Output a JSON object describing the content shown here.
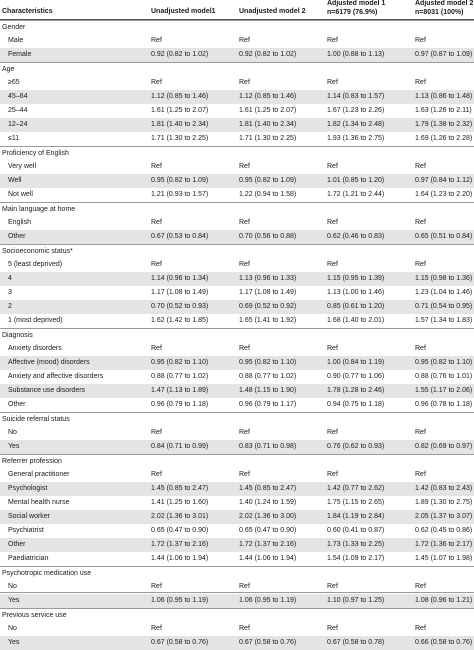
{
  "header": {
    "characteristics": "Characteristics",
    "m1": "Unadjusted model1",
    "m2": "Unadjusted model 2",
    "adj1_line1": "Adjusted model 1",
    "adj1_line2": "n=6179 (76.9%)",
    "adj2_line1": "Adjusted model 2",
    "adj2_line2": "n=8031 (100%)"
  },
  "sections": [
    {
      "title": "Gender",
      "rows": [
        {
          "label": "Male",
          "v": [
            "Ref",
            "Ref",
            "Ref",
            "Ref"
          ]
        },
        {
          "label": "Female",
          "v": [
            "0.92 (0.82 to 1.02)",
            "0.92 (0.82 to 1.02)",
            "1.00 (0.88 to 1.13)",
            "0.97 (0.87 to 1.09)"
          ]
        }
      ]
    },
    {
      "title": "Age",
      "rows": [
        {
          "label": "≥65",
          "v": [
            "Ref",
            "Ref",
            "Ref",
            "Ref"
          ]
        },
        {
          "label": "45–64",
          "v": [
            "1.12 (0.85 to 1.46)",
            "1.12 (0.85 to 1.46)",
            "1.14 (0.83 to 1.57)",
            "1.13 (0.86 to 1.48)"
          ]
        },
        {
          "label": "25–44",
          "v": [
            "1.61 (1.25 to 2.07)",
            "1.61 (1.25 to 2.07)",
            "1.67 (1.23 to 2.26)",
            "1.63 (1.26 to 2.11)"
          ]
        },
        {
          "label": "12–24",
          "v": [
            "1.81 (1.40 to 2.34)",
            "1.81 (1.40 to 2.34)",
            "1.82 (1.34 to 2.48)",
            "1.79 (1.38 to 2.32)"
          ]
        },
        {
          "label": "≤11",
          "v": [
            "1.71 (1.30 to 2.25)",
            "1.71 (1.30 to 2.25)",
            "1.93 (1.36 to 2.75)",
            "1.69 (1.26 to 2.28)"
          ]
        }
      ]
    },
    {
      "title": "Proficiency of English",
      "rows": [
        {
          "label": "Very well",
          "v": [
            "Ref",
            "Ref",
            "Ref",
            "Ref"
          ]
        },
        {
          "label": "Well",
          "v": [
            "0.95 (0.82 to 1.09)",
            "0.95 (0.82 to 1.09)",
            "1.01 (0.85 to 1.20)",
            "0.97 (0.84 to 1.12)"
          ]
        },
        {
          "label": "Not well",
          "v": [
            "1.21 (0.93 to 1.57)",
            "1.22 (0.94 to 1.58)",
            "1.72 (1.21 to 2.44)",
            "1.64 (1.23 to 2.20)"
          ]
        }
      ]
    },
    {
      "title": "Main language at home",
      "rows": [
        {
          "label": "English",
          "v": [
            "Ref",
            "Ref",
            "Ref",
            "Ref"
          ]
        },
        {
          "label": "Other",
          "v": [
            "0.67 (0.53 to 0.84)",
            "0.70 (0.56 to 0.88)",
            "0.62 (0.46 to 0.83)",
            "0.65 (0.51 to 0.84)"
          ]
        }
      ]
    },
    {
      "title": "Socioeconomic status*",
      "rows": [
        {
          "label": "5 (least deprived)",
          "v": [
            "Ref",
            "Ref",
            "Ref",
            "Ref"
          ]
        },
        {
          "label": "4",
          "v": [
            "1.14 (0.96 to 1.34)",
            "1.13 (0.96 to 1.33)",
            "1.15 (0.95 to 1.39)",
            "1.15 (0.98 to 1.36)"
          ]
        },
        {
          "label": "3",
          "v": [
            "1.17 (1.08 to 1.49)",
            "1.17 (1.08 to 1.49)",
            "1.13 (1.00 to 1.46)",
            "1.23 (1.04 to 1.46)"
          ]
        },
        {
          "label": "2",
          "v": [
            "0.70 (0.52 to 0.93)",
            "0.69 (0.52 to 0.92)",
            "0.85 (0.61 to 1.20)",
            "0.71 (0.54 to 0.95)"
          ]
        },
        {
          "label": "1 (most deprived)",
          "v": [
            "1.62 (1.42 to 1.85)",
            "1.65 (1.41 to 1.92)",
            "1.68 (1.40 to 2.01)",
            "1.57 (1.34 to 1.83)"
          ]
        }
      ]
    },
    {
      "title": "Diagnosis",
      "rows": [
        {
          "label": "Anxiety disorders",
          "v": [
            "Ref",
            "Ref",
            "Ref",
            "Ref"
          ]
        },
        {
          "label": "Affective (mood) disorders",
          "v": [
            "0.95 (0.82 to 1.10)",
            "0.95 (0.82 to 1.10)",
            "1.00 (0.84 to 1.19)",
            "0.95 (0.82 to 1.10)"
          ]
        },
        {
          "label": "Anxiety and affective disorders",
          "v": [
            "0.88 (0.77 to 1.02)",
            "0.88 (0.77 to 1.02)",
            "0.90 (0.77 to 1.06)",
            "0.88 (0.76 to 1.01)"
          ]
        },
        {
          "label": "Substance use disorders",
          "v": [
            "1.47 (1.13 to 1.89)",
            "1.48 (1.15 to 1.90)",
            "1.78 (1.28 to 2.46)",
            "1.55 (1.17 to 2.06)"
          ]
        },
        {
          "label": "Other",
          "v": [
            "0.96 (0.79 to 1.18)",
            "0.96 (0.79 to 1.17)",
            "0.94 (0.75 to 1.18)",
            "0.96 (0.78 to 1.18)"
          ]
        }
      ]
    },
    {
      "title": "Suicide referral status",
      "rows": [
        {
          "label": "No",
          "v": [
            "Ref",
            "Ref",
            "Ref",
            "Ref"
          ]
        },
        {
          "label": "Yes",
          "v": [
            "0.84 (0.71 to 0.99)",
            "0.83 (0.71 to 0.98)",
            "0.76 (0.62 to 0.93)",
            "0.82 (0.69 to 0.97)"
          ]
        }
      ]
    },
    {
      "title": "Referrer profession",
      "rows": [
        {
          "label": "General practitioner",
          "v": [
            "Ref",
            "Ref",
            "Ref",
            "Ref"
          ]
        },
        {
          "label": "Psychologist",
          "v": [
            "1.45 (0.85 to 2.47)",
            "1.45 (0.85 to 2.47)",
            "1.42 (0.77 to 2.62)",
            "1.42 (0.83 to 2.43)"
          ]
        },
        {
          "label": "Mental health nurse",
          "v": [
            "1.41 (1.25 to 1.60)",
            "1.40 (1.24 to 1.59)",
            "1.75 (1.15 to 2.65)",
            "1.89 (1.30 to 2.75)"
          ]
        },
        {
          "label": "Social worker",
          "v": [
            "2.02 (1.36 to 3.01)",
            "2.02 (1.36 to 3.00)",
            "1.84 (1.19 to 2.84)",
            "2.05 (1.37 to 3.07)"
          ]
        },
        {
          "label": "Psychiatrist",
          "v": [
            "0.65 (0.47 to 0.90)",
            "0.65 (0.47 to 0.90)",
            "0.60 (0.41 to 0.87)",
            "0.62 (0.45 to 0.86)"
          ]
        },
        {
          "label": "Other",
          "v": [
            "1.72 (1.37 to 2.16)",
            "1.72 (1.37 to 2.16)",
            "1.73 (1.33 to 2.25)",
            "1.72 (1.36 to 2.17)"
          ]
        },
        {
          "label": "Paediatrician",
          "v": [
            "1.44 (1.06 to 1.94)",
            "1.44 (1.06 to 1.94)",
            "1.54 (1.09 to 2.17)",
            "1.45 (1.07 to 1.98)"
          ]
        }
      ]
    },
    {
      "title": "Psychotropic medication use",
      "rows": [
        {
          "label": "No",
          "v": [
            "Ref",
            "Ref",
            "Ref",
            "Ref"
          ]
        },
        {
          "label": "Yes",
          "v": [
            "1.06 (0.95 to 1.19)",
            "1.06 (0.95 to 1.19)",
            "1.10 (0.97 to 1.25)",
            "1.08 (0.96 to 1.21)"
          ]
        }
      ]
    },
    {
      "title": "Previous service use",
      "rows": [
        {
          "label": "No",
          "v": [
            "Ref",
            "Ref",
            "Ref",
            "Ref"
          ]
        },
        {
          "label": "Yes",
          "v": [
            "0.67 (0.58 to 0.76)",
            "0.67 (0.58 to 0.76)",
            "0.67 (0.58 to 0.78)",
            "0.66 (0.58 to 0.76)"
          ]
        }
      ]
    }
  ]
}
